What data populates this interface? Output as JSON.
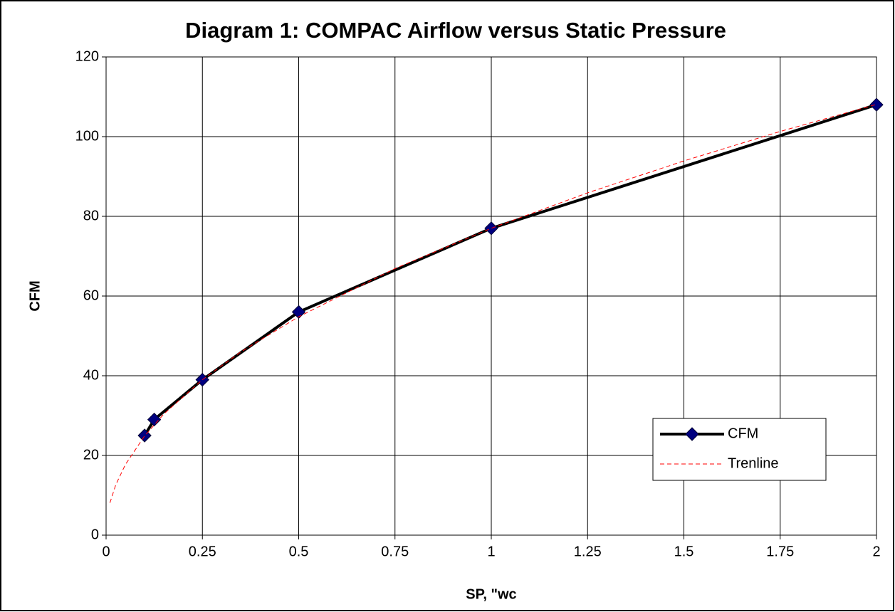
{
  "chart_data": {
    "type": "line",
    "title": "Diagram 1: COMPAC Airflow versus Static Pressure",
    "x_label": "SP, \"wc",
    "y_label": "CFM",
    "series": [
      {
        "name": "CFM",
        "color": "#000000",
        "marker_color": "#000080",
        "marker": "diamond",
        "dashed": false,
        "x": [
          0.1,
          0.125,
          0.25,
          0.5,
          1,
          2
        ],
        "values": [
          25,
          29,
          39,
          56,
          77,
          108
        ]
      },
      {
        "name": "Trenline",
        "color": "#ff0000",
        "marker": "none",
        "dashed": true,
        "x": [
          0.01,
          0.025,
          0.05,
          0.1,
          0.15,
          0.25,
          0.35,
          0.5,
          0.75,
          1,
          1.25,
          1.5,
          1.75,
          2
        ],
        "values": [
          8.1,
          12.6,
          17.7,
          24.9,
          30.4,
          39,
          46,
          54.8,
          66.9,
          77,
          85.9,
          93.9,
          101.3,
          108.1
        ]
      }
    ],
    "xlim": [
      0,
      2
    ],
    "xticks": [
      0,
      0.25,
      0.5,
      0.75,
      1,
      1.25,
      1.5,
      1.75,
      2
    ],
    "ylim": [
      0,
      120
    ],
    "yticks": [
      0,
      20,
      40,
      60,
      80,
      100,
      120
    ],
    "grid": true,
    "legend": "lower-right"
  }
}
